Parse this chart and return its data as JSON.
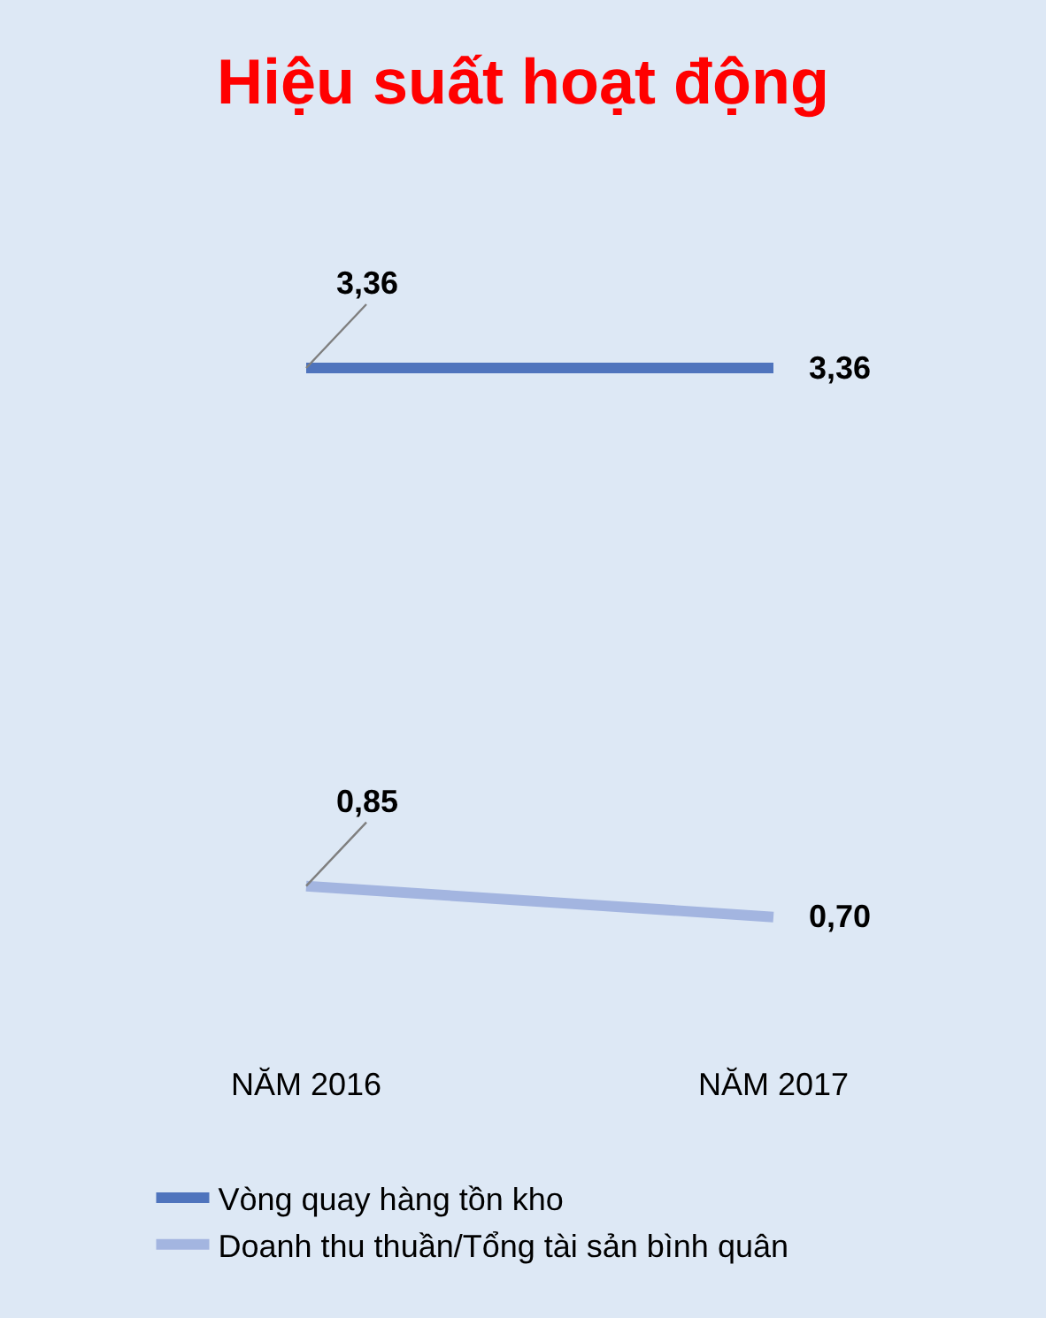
{
  "chart_data": {
    "type": "line",
    "title": "Hiệu suất hoạt động",
    "categories": [
      "NĂM 2016",
      "NĂM 2017"
    ],
    "series": [
      {
        "name": "Vòng quay hàng tồn kho",
        "color": "#4f74bd",
        "values": [
          3.36,
          3.36
        ],
        "value_labels": [
          "3,36",
          "3,36"
        ]
      },
      {
        "name": "Doanh thu thuần/Tổng tài sản bình quân",
        "color": "#a3b5e0",
        "values": [
          0.85,
          0.7
        ],
        "value_labels": [
          "0,85",
          "0,70"
        ]
      }
    ],
    "legend": "bottom",
    "grid": false,
    "marker": "none",
    "line_style": "solid",
    "tick_labels": "x"
  }
}
